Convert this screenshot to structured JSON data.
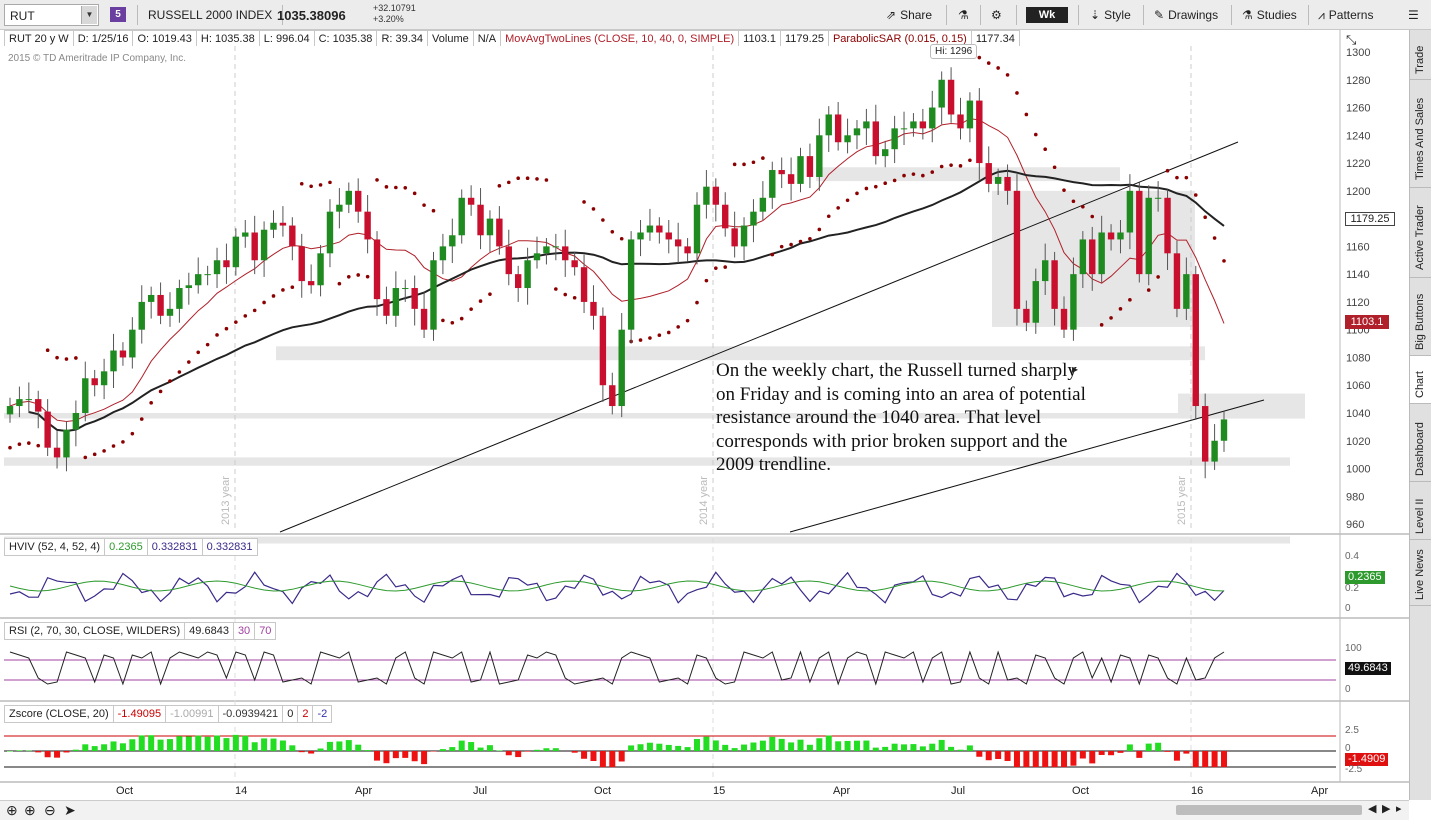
{
  "toolbar": {
    "symbol": "RUT",
    "link_badge": "5",
    "instrument_name": "RUSSELL 2000 INDEX",
    "last_price": "1035.38096",
    "change_abs": "+32.10791",
    "change_pct": "+3.20%",
    "share_label": "Share",
    "aggregation": "Wk",
    "style_label": "Style",
    "drawings_label": "Drawings",
    "studies_label": "Studies",
    "patterns_label": "Patterns"
  },
  "price_header": {
    "period": "RUT 20 y W",
    "date": "D: 1/25/16",
    "open": "O: 1019.43",
    "high": "H: 1035.38",
    "low": "L: 996.04",
    "close": "C: 1035.38",
    "range": "R: 39.34",
    "volume_label": "Volume",
    "volume_value": "N/A",
    "ma_study": "MovAvgTwoLines (CLOSE, 10, 40, 0, SIMPLE)",
    "ma_fast": "1103.1",
    "ma_slow": "1179.25",
    "sar_study": "ParabolicSAR (0.015, 0.15)",
    "sar_value": "1177.34"
  },
  "copyright": "2015 © TD Ameritrade IP Company, Inc.",
  "hi_label": "Hi: 1296",
  "year_labels": [
    "2013 year",
    "2014 year",
    "2015 year"
  ],
  "annotation": "On the weekly chart, the Russell turned sharply on Friday and is coming into an area of potential resistance around the 1040 area.  That level corresponds with prior broken support and the 2009 trendline.",
  "price_badges": {
    "slow_ma": "1179.25",
    "fast_ma": "1103.1"
  },
  "hviv": {
    "study": "HVIV (52, 4, 52, 4)",
    "v1": "0.2365",
    "v2": "0.332831",
    "v3": "0.332831",
    "badge": "0.2365",
    "axis": [
      "0.4",
      "0.2",
      "0"
    ]
  },
  "rsi": {
    "study": "RSI (2, 70, 30, CLOSE, WILDERS)",
    "value": "49.6843",
    "os": "30",
    "ob": "70",
    "badge": "49.6843",
    "axis": [
      "100",
      "50",
      "0"
    ]
  },
  "zscore": {
    "study": "Zscore (CLOSE, 20)",
    "v1": "-1.49095",
    "v2": "-1.00991",
    "v3": "-0.0939421",
    "p1": "0",
    "p2": "2",
    "p3": "-2",
    "badge": "-1.4909",
    "axis": [
      "2.5",
      "0",
      "-2.5"
    ]
  },
  "x_axis_labels": [
    "Oct",
    "14",
    "Apr",
    "Jul",
    "Oct",
    "15",
    "Apr",
    "Jul",
    "Oct",
    "16",
    "Apr"
  ],
  "sidebar_tabs": [
    "Trade",
    "Times And Sales",
    "Active Trader",
    "Big Buttons",
    "Chart",
    "Dashboard",
    "Level II",
    "Live News"
  ],
  "colors": {
    "up": "#1f8a1f",
    "down": "#c8102e",
    "ma_fast": "#b0202a",
    "ma_slow": "#222222",
    "sar": "#8b0000",
    "hv": "#3a2a8a",
    "iv": "#2e9a2e"
  },
  "chart_data": {
    "type": "candlestick",
    "title": "RUSSELL 2000 INDEX",
    "timeframe": "Weekly",
    "ylim": [
      950,
      1310
    ],
    "y_ticks": [
      960,
      980,
      1000,
      1020,
      1040,
      1060,
      1080,
      1100,
      1120,
      1140,
      1160,
      1180,
      1200,
      1220,
      1240,
      1260,
      1280,
      1300
    ],
    "period_high": 1296,
    "last_bar": {
      "date": "1/25/16",
      "open": 1019.43,
      "high": 1035.38,
      "low": 996.04,
      "close": 1035.38
    },
    "closes": [
      1045,
      1050,
      1050,
      1041,
      1015,
      1008,
      1028,
      1040,
      1065,
      1060,
      1070,
      1085,
      1080,
      1100,
      1120,
      1125,
      1110,
      1115,
      1130,
      1132,
      1140,
      1140,
      1150,
      1145,
      1167,
      1170,
      1150,
      1172,
      1177,
      1175,
      1160,
      1135,
      1132,
      1155,
      1185,
      1190,
      1200,
      1185,
      1165,
      1122,
      1110,
      1130,
      1130,
      1115,
      1100,
      1150,
      1160,
      1168,
      1195,
      1190,
      1168,
      1180,
      1160,
      1140,
      1130,
      1150,
      1155,
      1160,
      1160,
      1150,
      1145,
      1120,
      1110,
      1060,
      1045,
      1100,
      1165,
      1170,
      1175,
      1170,
      1165,
      1160,
      1155,
      1190,
      1203,
      1190,
      1173,
      1160,
      1175,
      1185,
      1195,
      1215,
      1212,
      1205,
      1225,
      1210,
      1240,
      1255,
      1235,
      1240,
      1245,
      1250,
      1225,
      1230,
      1245,
      1245,
      1250,
      1245,
      1260,
      1280,
      1255,
      1245,
      1265,
      1220,
      1205,
      1210,
      1200,
      1115,
      1105,
      1135,
      1150,
      1115,
      1100,
      1140,
      1165,
      1140,
      1170,
      1165,
      1170,
      1200,
      1140,
      1195,
      1195,
      1155,
      1115,
      1140,
      1045,
      1005,
      1020,
      1035.38
    ]
  }
}
